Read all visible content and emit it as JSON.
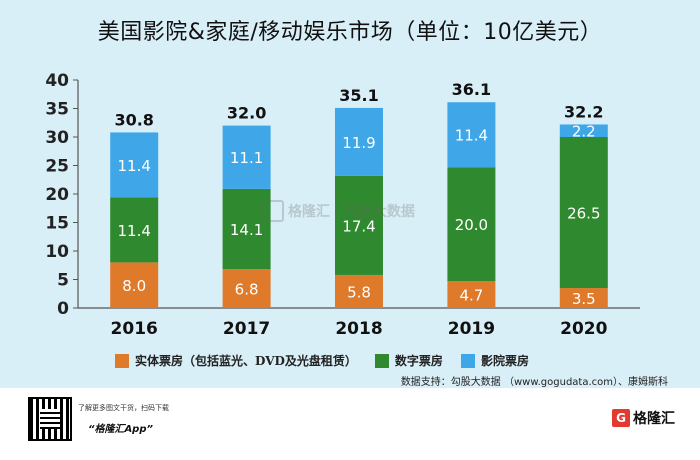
{
  "chart_data": {
    "type": "bar",
    "stacked": true,
    "title": "美国影院&家庭/移动娱乐市场（单位：10亿美元）",
    "categories": [
      "2016",
      "2017",
      "2018",
      "2019",
      "2020"
    ],
    "series": [
      {
        "name": "实体票房（包括蓝光、DVD及光盘租赁）",
        "color": "#e07a2b",
        "values": [
          8.0,
          6.8,
          5.8,
          4.7,
          3.5
        ]
      },
      {
        "name": "数字票房",
        "color": "#2f8a2f",
        "values": [
          11.4,
          14.1,
          17.4,
          20.0,
          26.5
        ]
      },
      {
        "name": "影院票房",
        "color": "#3fa7e8",
        "values": [
          11.4,
          11.1,
          11.9,
          11.4,
          2.2
        ]
      }
    ],
    "totals": [
      "30.8",
      "32.0",
      "35.1",
      "36.1",
      "32.2"
    ],
    "ylim": [
      0,
      40
    ],
    "yticks": [
      0,
      5,
      10,
      15,
      20,
      25,
      30,
      35,
      40
    ],
    "grid": false,
    "legend_position": "bottom",
    "source": "数据支持：勾股大数据 （www.gogudata.com）、康姆斯科"
  },
  "watermark": {
    "text": "格隆汇 | 勾股大数据"
  },
  "footer": {
    "note": "了解更多图文干货，扫码下载",
    "app": "“格隆汇App”",
    "logo_mark": "G",
    "logo_text": "格隆汇"
  }
}
